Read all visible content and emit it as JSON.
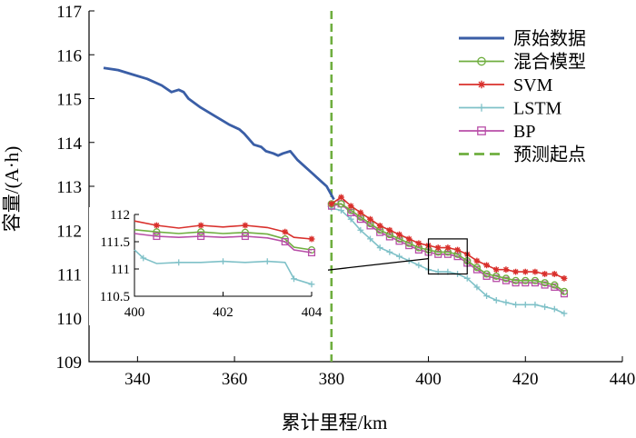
{
  "chart_data": {
    "type": "line",
    "xlabel": "累计里程/km",
    "ylabel": "容量/(A·h)",
    "xlim": [
      330,
      440
    ],
    "ylim": [
      109,
      117
    ],
    "xticks": [
      "340",
      "360",
      "380",
      "400",
      "420",
      "440"
    ],
    "yticks": [
      "109",
      "110",
      "111",
      "112",
      "113",
      "114",
      "115",
      "116",
      "117"
    ],
    "grid": false,
    "legend_position": "top-right",
    "prediction_start_x": 380,
    "series": [
      {
        "name": "原始数据",
        "color": "#3a5ea6",
        "marker": "none",
        "x": [
          333,
          336,
          339,
          342,
          345,
          347,
          348.5,
          349.5,
          350.5,
          353,
          356,
          359,
          361,
          362,
          364,
          365.5,
          366.5,
          368,
          369,
          370,
          371.5,
          373,
          374.5,
          376,
          377.5,
          379,
          380.5
        ],
        "y": [
          115.7,
          115.65,
          115.55,
          115.45,
          115.3,
          115.15,
          115.2,
          115.15,
          115.0,
          114.8,
          114.6,
          114.4,
          114.3,
          114.2,
          113.95,
          113.9,
          113.8,
          113.75,
          113.7,
          113.75,
          113.8,
          113.6,
          113.45,
          113.3,
          113.15,
          113.0,
          112.7
        ]
      },
      {
        "name": "混合模型",
        "color": "#6fae3f",
        "marker": "circle",
        "x": [
          380,
          382,
          384,
          386,
          388,
          390,
          392,
          394,
          396,
          398,
          400,
          402,
          404,
          406,
          408,
          410,
          412,
          414,
          416,
          418,
          420,
          422,
          424,
          426,
          428
        ],
        "y": [
          112.6,
          112.6,
          112.45,
          112.3,
          112.15,
          112.0,
          111.9,
          111.8,
          111.7,
          111.6,
          111.55,
          111.5,
          111.5,
          111.45,
          111.3,
          111.15,
          111.0,
          110.95,
          110.9,
          110.85,
          110.85,
          110.85,
          110.8,
          110.75,
          110.6
        ]
      },
      {
        "name": "SVM",
        "color": "#d9302c",
        "marker": "asterisk",
        "x": [
          380,
          382,
          384,
          386,
          388,
          390,
          392,
          394,
          396,
          398,
          400,
          402,
          404,
          406,
          408,
          410,
          412,
          414,
          416,
          418,
          420,
          422,
          424,
          426,
          428
        ],
        "y": [
          112.6,
          112.75,
          112.55,
          112.4,
          112.25,
          112.1,
          112.0,
          111.9,
          111.8,
          111.7,
          111.65,
          111.6,
          111.6,
          111.55,
          111.45,
          111.3,
          111.2,
          111.1,
          111.1,
          111.05,
          111.05,
          111.05,
          111.0,
          111.0,
          110.9
        ]
      },
      {
        "name": "LSTM",
        "color": "#7fc1c8",
        "marker": "plus",
        "x": [
          380,
          382,
          384,
          386,
          388,
          390,
          392,
          394,
          396,
          398,
          400,
          402,
          404,
          406,
          408,
          410,
          412,
          414,
          416,
          418,
          420,
          422,
          424,
          426,
          428
        ],
        "y": [
          112.5,
          112.45,
          112.25,
          112.0,
          111.8,
          111.6,
          111.5,
          111.4,
          111.3,
          111.2,
          111.1,
          111.05,
          111.05,
          111.0,
          110.9,
          110.7,
          110.5,
          110.4,
          110.35,
          110.3,
          110.3,
          110.3,
          110.25,
          110.2,
          110.1
        ]
      },
      {
        "name": "BP",
        "color": "#b84ea8",
        "marker": "square",
        "x": [
          380,
          382,
          384,
          386,
          388,
          390,
          392,
          394,
          396,
          398,
          400,
          402,
          404,
          406,
          408,
          410,
          412,
          414,
          416,
          418,
          420,
          422,
          424,
          426,
          428
        ],
        "y": [
          112.55,
          112.6,
          112.4,
          112.25,
          112.1,
          111.95,
          111.85,
          111.75,
          111.65,
          111.55,
          111.5,
          111.45,
          111.45,
          111.4,
          111.25,
          111.1,
          110.95,
          110.9,
          110.85,
          110.8,
          110.8,
          110.8,
          110.75,
          110.7,
          110.55
        ]
      }
    ],
    "legend_extra": {
      "name": "预测起点",
      "color": "#6fae3f",
      "style": "dashed"
    },
    "inset": {
      "xlim": [
        400,
        404
      ],
      "ylim": [
        110.5,
        112
      ],
      "xticks": [
        "400",
        "402",
        "404"
      ],
      "yticks": [
        "110.5",
        "111",
        "111.5",
        "112"
      ],
      "zoom_box": {
        "xlim": [
          400,
          408
        ],
        "ylim": [
          111.0,
          111.8
        ]
      },
      "series": [
        {
          "name": "混合模型",
          "x": [
            400,
            400.5,
            401,
            401.5,
            402,
            402.5,
            403,
            403.4,
            403.6,
            404
          ],
          "y": [
            111.72,
            111.68,
            111.65,
            111.68,
            111.65,
            111.67,
            111.64,
            111.55,
            111.4,
            111.35
          ]
        },
        {
          "name": "SVM",
          "x": [
            400,
            400.5,
            401,
            401.5,
            402,
            402.5,
            403,
            403.4,
            403.6,
            404
          ],
          "y": [
            111.88,
            111.8,
            111.75,
            111.8,
            111.77,
            111.8,
            111.76,
            111.68,
            111.58,
            111.55
          ]
        },
        {
          "name": "LSTM",
          "x": [
            400,
            400.2,
            400.5,
            401,
            401.5,
            402,
            402.5,
            403,
            403.4,
            403.6,
            404
          ],
          "y": [
            111.35,
            111.2,
            111.1,
            111.12,
            111.12,
            111.14,
            111.12,
            111.14,
            111.12,
            110.82,
            110.72
          ]
        },
        {
          "name": "BP",
          "x": [
            400,
            400.5,
            401,
            401.5,
            402,
            402.5,
            403,
            403.4,
            403.6,
            404
          ],
          "y": [
            111.65,
            111.6,
            111.58,
            111.6,
            111.58,
            111.6,
            111.57,
            111.5,
            111.35,
            111.3
          ]
        }
      ]
    }
  }
}
